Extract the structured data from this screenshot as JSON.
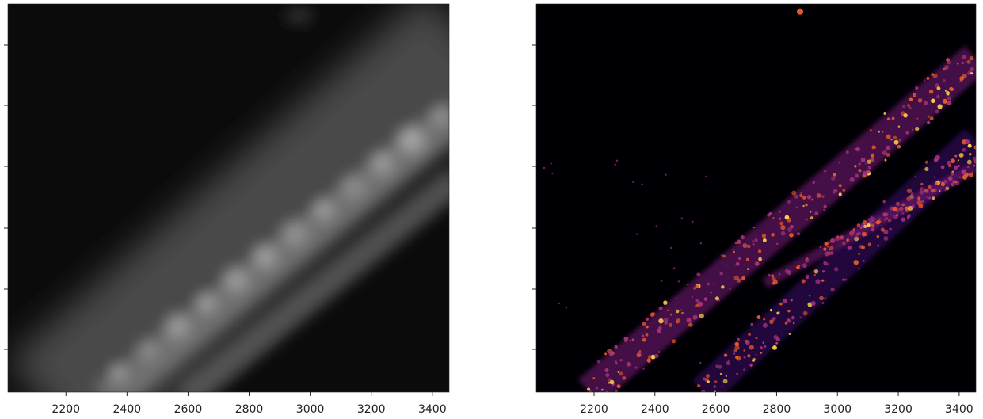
{
  "chart_data": [
    {
      "type": "image",
      "colormap": "gray",
      "xlim": [
        2010,
        3455
      ],
      "xticks": [
        2200,
        2400,
        2600,
        2800,
        3000,
        3200,
        3400
      ]
    },
    {
      "type": "image",
      "colormap": "inferno",
      "xlim": [
        2010,
        3455
      ],
      "xticks": [
        2200,
        2400,
        2600,
        2800,
        3000,
        3200,
        3400
      ]
    }
  ]
}
